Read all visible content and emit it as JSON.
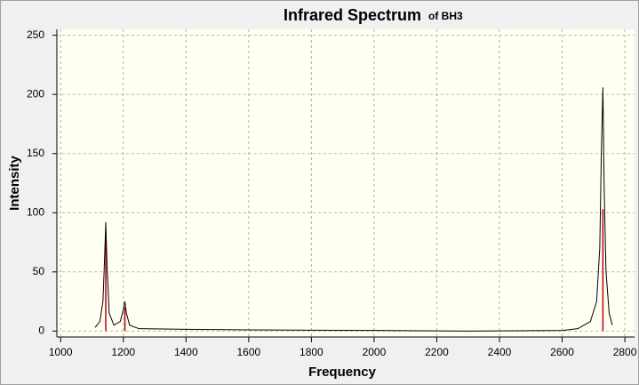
{
  "chart_data": {
    "type": "line",
    "title": "Infrared Spectrum",
    "subtitle": "of BH3",
    "x_label": "Frequency",
    "y_label": "Intensity",
    "xlim": [
      988,
      2831
    ],
    "ylim": [
      -5,
      255
    ],
    "xticks": [
      1000,
      1200,
      1400,
      1600,
      1800,
      2000,
      2200,
      2400,
      2600,
      2800
    ],
    "yticks": [
      0,
      50,
      100,
      150,
      200,
      250
    ],
    "grid": true,
    "series": [
      {
        "type": "line",
        "color": "#000000",
        "x": [
          1110,
          1125,
          1135,
          1140,
          1144,
          1148,
          1155,
          1170,
          1190,
          1200,
          1205,
          1210,
          1220,
          1250,
          1400,
          1600,
          2000,
          2300,
          2600,
          2650,
          2690,
          2710,
          2720,
          2725,
          2730,
          2734,
          2740,
          2750,
          2760
        ],
        "values": [
          3,
          8,
          25,
          60,
          92,
          55,
          15,
          5,
          8,
          18,
          25,
          15,
          5,
          2,
          1.5,
          1,
          0.5,
          0,
          0.5,
          2,
          8,
          25,
          70,
          150,
          206,
          120,
          50,
          15,
          5
        ]
      },
      {
        "type": "stick",
        "color": "#c00000",
        "x": [
          1144,
          1205,
          2730
        ],
        "values": [
          78,
          20,
          103
        ]
      }
    ]
  }
}
